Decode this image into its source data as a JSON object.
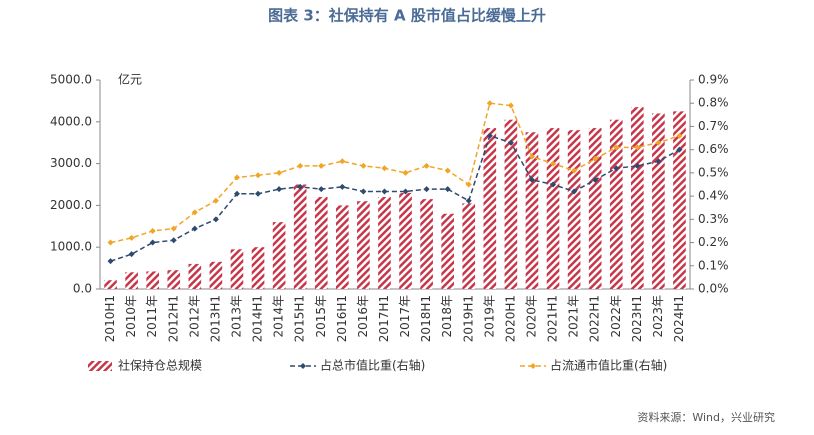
{
  "chart_data": {
    "type": "bar-line",
    "title": "图表 3：社保持有 A 股市值占比缓慢上升",
    "y_unit": "亿元",
    "source": "资料来源：Wind，兴业研究",
    "categories": [
      "2010H1",
      "2010年",
      "2011年",
      "2012H1",
      "2012年",
      "2013H1",
      "2013年",
      "2014H1",
      "2014年",
      "2015H1",
      "2015年",
      "2016H1",
      "2016年",
      "2017H1",
      "2017年",
      "2018H1",
      "2018年",
      "2019H1",
      "2019年",
      "2020H1",
      "2020年",
      "2021H1",
      "2021年",
      "2022H1",
      "2022年",
      "2023H1",
      "2023年",
      "2024H1"
    ],
    "series": [
      {
        "name": "社保持仓总规模",
        "color": "#c8364a",
        "kind": "bar",
        "values": [
          210,
          400,
          420,
          450,
          600,
          650,
          950,
          1000,
          1600,
          2500,
          2200,
          2000,
          2100,
          2200,
          2300,
          2150,
          1800,
          2050,
          3850,
          4050,
          3750,
          3850,
          3800,
          3850,
          4050,
          4350,
          4200,
          4250
        ]
      },
      {
        "name": "占总市值比重(右轴)",
        "color": "#2e4a6e",
        "kind": "line",
        "axis": "y2",
        "values": [
          0.12,
          0.15,
          0.2,
          0.21,
          0.26,
          0.3,
          0.41,
          0.41,
          0.43,
          0.44,
          0.43,
          0.44,
          0.42,
          0.42,
          0.42,
          0.43,
          0.43,
          0.38,
          0.66,
          0.63,
          0.47,
          0.45,
          0.42,
          0.47,
          0.52,
          0.53,
          0.55,
          0.6
        ]
      },
      {
        "name": "占流通市值比重(右轴)",
        "color": "#f0a526",
        "kind": "line",
        "axis": "y2",
        "values": [
          0.2,
          0.22,
          0.25,
          0.26,
          0.33,
          0.38,
          0.48,
          0.49,
          0.5,
          0.53,
          0.53,
          0.55,
          0.53,
          0.52,
          0.5,
          0.53,
          0.51,
          0.45,
          0.8,
          0.79,
          0.57,
          0.54,
          0.51,
          0.56,
          0.61,
          0.61,
          0.63,
          0.66
        ]
      }
    ],
    "ylim": [
      0,
      5000
    ],
    "yticks": [
      {
        "value": 0,
        "label": "0.0"
      },
      {
        "value": 1000,
        "label": "1000.0"
      },
      {
        "value": 2000,
        "label": "2000.0"
      },
      {
        "value": 3000,
        "label": "3000.0"
      },
      {
        "value": 4000,
        "label": "4000.0"
      },
      {
        "value": 5000,
        "label": "5000.0"
      }
    ],
    "y2lim": [
      0,
      0.9
    ],
    "y2ticks": [
      {
        "value": 0,
        "label": "0.0%"
      },
      {
        "value": 0.1,
        "label": "0.1%"
      },
      {
        "value": 0.2,
        "label": "0.2%"
      },
      {
        "value": 0.3,
        "label": "0.3%"
      },
      {
        "value": 0.4,
        "label": "0.4%"
      },
      {
        "value": 0.5,
        "label": "0.5%"
      },
      {
        "value": 0.6,
        "label": "0.6%"
      },
      {
        "value": 0.7,
        "label": "0.7%"
      },
      {
        "value": 0.8,
        "label": "0.8%"
      },
      {
        "value": 0.9,
        "label": "0.9%"
      }
    ]
  }
}
